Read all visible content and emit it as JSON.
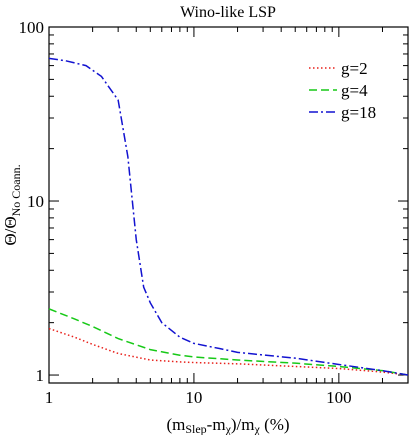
{
  "chart_data": {
    "type": "line",
    "title": "Wino-like LSP",
    "xlabel": {
      "pre": "(m",
      "sub1": "Slep",
      "mid": "-m",
      "sub2": "χ",
      "mid2": ")/m",
      "sub3": "χ",
      "post": " (%)"
    },
    "ylabel": {
      "main": "Θ/Θ",
      "sub": "No Coann."
    },
    "xscale": "log",
    "yscale": "log",
    "xlim": [
      1,
      300
    ],
    "ylim": [
      0.9,
      100
    ],
    "xticks": [
      1,
      10,
      100
    ],
    "xtick_labels": [
      "1",
      "10",
      "100"
    ],
    "yticks": [
      1,
      10,
      100
    ],
    "ytick_labels": [
      "1",
      "10",
      "100"
    ],
    "legend_position": "top-right",
    "series": [
      {
        "name": "g=2",
        "color": "#e8201a",
        "dash": "dotted",
        "x": [
          1,
          1.5,
          2,
          3,
          5,
          8,
          10,
          20,
          50,
          100,
          200,
          300
        ],
        "y": [
          1.85,
          1.65,
          1.5,
          1.33,
          1.22,
          1.19,
          1.18,
          1.16,
          1.12,
          1.09,
          1.04,
          1.0
        ]
      },
      {
        "name": "g=4",
        "color": "#17c917",
        "dash": "dashed",
        "x": [
          1,
          1.5,
          2,
          3,
          5,
          8,
          10,
          20,
          50,
          100,
          200,
          300
        ],
        "y": [
          2.4,
          2.1,
          1.9,
          1.62,
          1.4,
          1.3,
          1.27,
          1.22,
          1.17,
          1.12,
          1.06,
          1.0
        ]
      },
      {
        "name": "g=18",
        "color": "#1212d0",
        "dash": "dashdot",
        "x": [
          1,
          1.3,
          1.8,
          2.3,
          3,
          3.5,
          4.0,
          4.5,
          5,
          6,
          8,
          10,
          15,
          20,
          50,
          100,
          200,
          300
        ],
        "y": [
          66,
          64,
          60,
          52,
          38,
          18,
          6,
          3.2,
          2.6,
          2.0,
          1.65,
          1.52,
          1.42,
          1.35,
          1.25,
          1.15,
          1.06,
          1.0
        ]
      }
    ]
  }
}
